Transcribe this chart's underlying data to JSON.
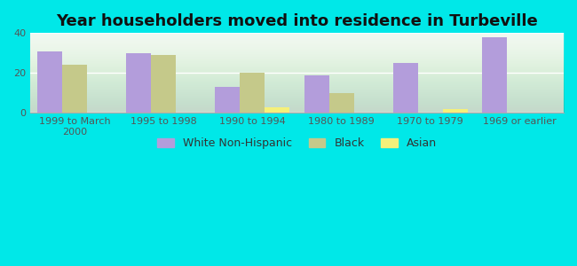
{
  "title": "Year householders moved into residence in Turbeville",
  "categories": [
    "1999 to March\n2000",
    "1995 to 1998",
    "1990 to 1994",
    "1980 to 1989",
    "1970 to 1979",
    "1969 or earlier"
  ],
  "series": {
    "White Non-Hispanic": [
      31,
      30,
      13,
      19,
      25,
      38
    ],
    "Black": [
      24,
      29,
      20,
      10,
      0,
      0
    ],
    "Asian": [
      0,
      0,
      3,
      0,
      2,
      0
    ]
  },
  "colors": {
    "White Non-Hispanic": "#b39ddb",
    "Black": "#c5c98a",
    "Asian": "#f5f07a"
  },
  "ylim": [
    0,
    40
  ],
  "yticks": [
    0,
    20,
    40
  ],
  "background_color": "#00e8e8",
  "bar_width": 0.28,
  "title_fontsize": 13,
  "legend_fontsize": 9,
  "tick_fontsize": 8
}
